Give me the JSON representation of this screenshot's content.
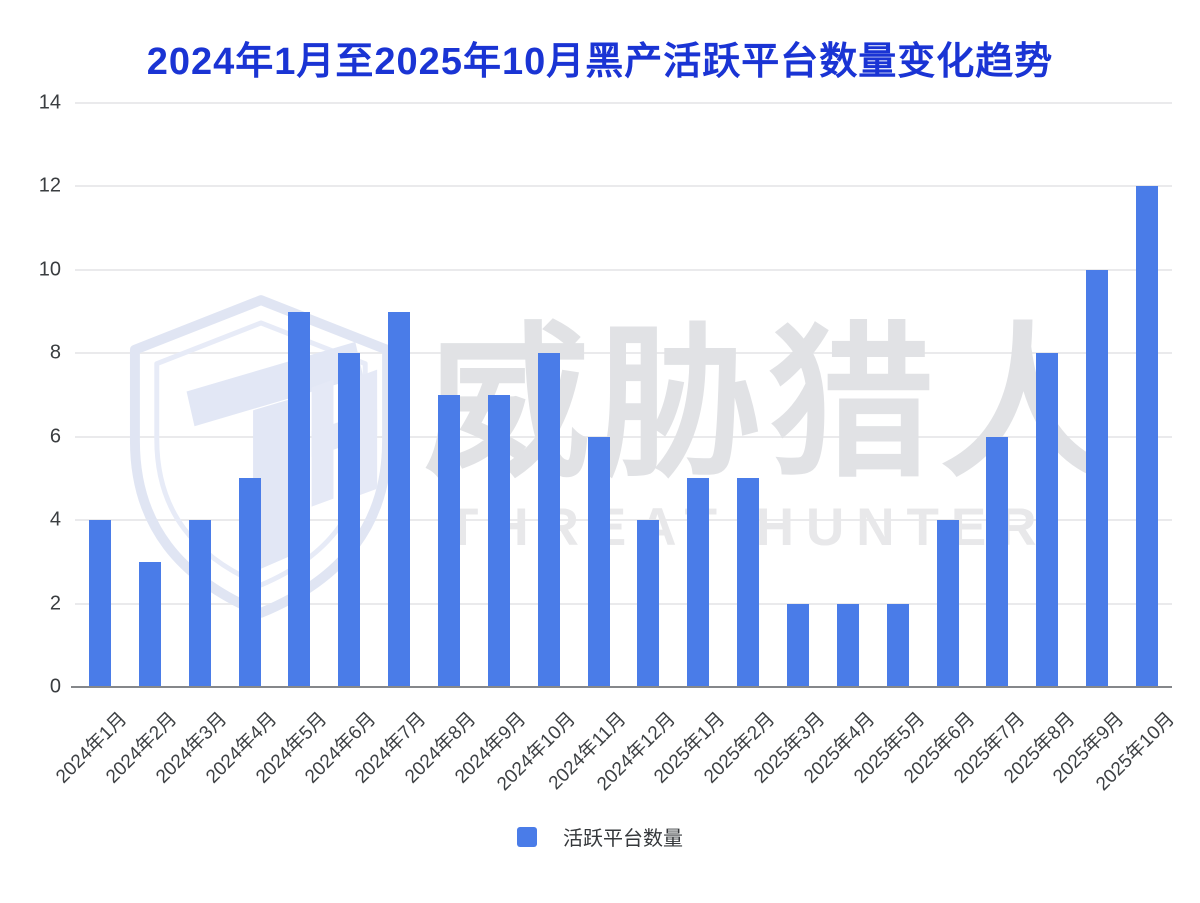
{
  "page": {
    "title": "2024年1月至2025年10月黑产活跃平台数量变化趋势"
  },
  "watermark": {
    "chinese": "威胁猎人",
    "english": "THREAT HUNTER",
    "monogram": "TH"
  },
  "legend": {
    "label": "活跃平台数量"
  },
  "colors": {
    "bar": "#4a7ce8",
    "title": "#1a34d4",
    "axis_label": "#3a3d40",
    "gridline": "#eaeaec",
    "axis_line": "#85878a",
    "watermark_text": "#e1e2e5",
    "watermark_logo": "#e0e5f3"
  },
  "chart_data": {
    "type": "bar",
    "title": "2024年1月至2025年10月黑产活跃平台数量变化趋势",
    "categories": [
      "2024年1月",
      "2024年2月",
      "2024年3月",
      "2024年4月",
      "2024年5月",
      "2024年6月",
      "2024年7月",
      "2024年8月",
      "2024年9月",
      "2024年10月",
      "2024年11月",
      "2024年12月",
      "2025年1月",
      "2025年2月",
      "2025年3月",
      "2025年4月",
      "2025年5月",
      "2025年6月",
      "2025年7月",
      "2025年8月",
      "2025年9月",
      "2025年10月"
    ],
    "series": [
      {
        "name": "活跃平台数量",
        "values": [
          4,
          3,
          4,
          5,
          9,
          8,
          9,
          7,
          7,
          8,
          6,
          4,
          5,
          5,
          2,
          2,
          2,
          4,
          6,
          8,
          10,
          12
        ]
      }
    ],
    "xlabel": "",
    "ylabel": "",
    "ylim": [
      0,
      14
    ],
    "y_ticks": [
      0,
      2,
      4,
      6,
      8,
      10,
      12,
      14
    ],
    "grid": true,
    "legend_position": "bottom",
    "bar_color": "#4a7ce8"
  }
}
